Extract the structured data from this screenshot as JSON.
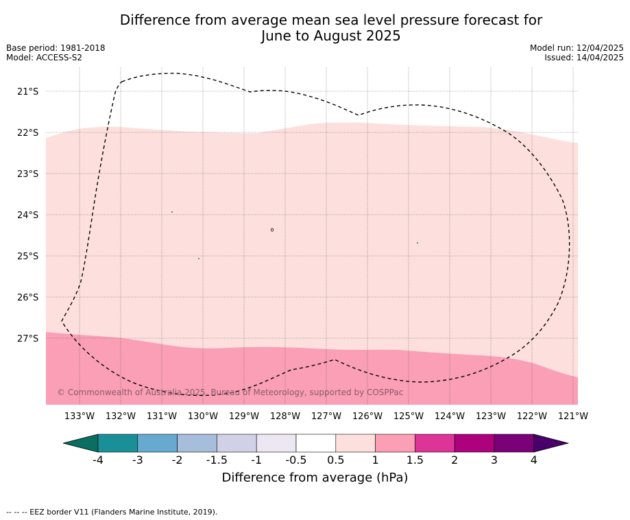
{
  "title_line1": "Difference from average mean sea level pressure forecast for",
  "title_line2": "June to August 2025",
  "base_period": "Base period: 1981-2018",
  "model": "Model: ACCESS-S2",
  "model_run": "Model run: 12/04/2025",
  "issued": "Issued: 14/04/2025",
  "copyright": "© Commonwealth of Australia 2025, Bureau of Meteorology, supported by COSPPac",
  "lat_labels": [
    "21°S",
    "22°S",
    "23°S",
    "24°S",
    "25°S",
    "26°S",
    "27°S"
  ],
  "lon_labels": [
    "133°W",
    "132°W",
    "131°W",
    "130°W",
    "129°W",
    "128°W",
    "127°W",
    "126°W",
    "125°W",
    "124°W",
    "123°W",
    "122°W",
    "121°W"
  ],
  "colorbar": {
    "title": "Difference from average (hPa)",
    "labels": [
      "-4",
      "-3",
      "-2",
      "-1.5",
      "-1",
      "-0.5",
      "0.5",
      "1",
      "1.5",
      "2",
      "3",
      "4"
    ],
    "colors": [
      "#1b8f98",
      "#67a9cf",
      "#a6bddb",
      "#d0d1e6",
      "#ece7f2",
      "#ffffff",
      "#fde0dd",
      "#fa9fb5",
      "#dd3497",
      "#ae017e",
      "#7a0177"
    ],
    "low_extend_color": "#0a6e62",
    "high_extend_color": "#49006a"
  },
  "fill_colors": {
    "band_0_5_to_1": "#fde0dd",
    "band_1_to_1_5": "#fa9fb5"
  },
  "footer": "-- -- -- EEZ border V11 (Flanders Marine Institute, 2019)."
}
